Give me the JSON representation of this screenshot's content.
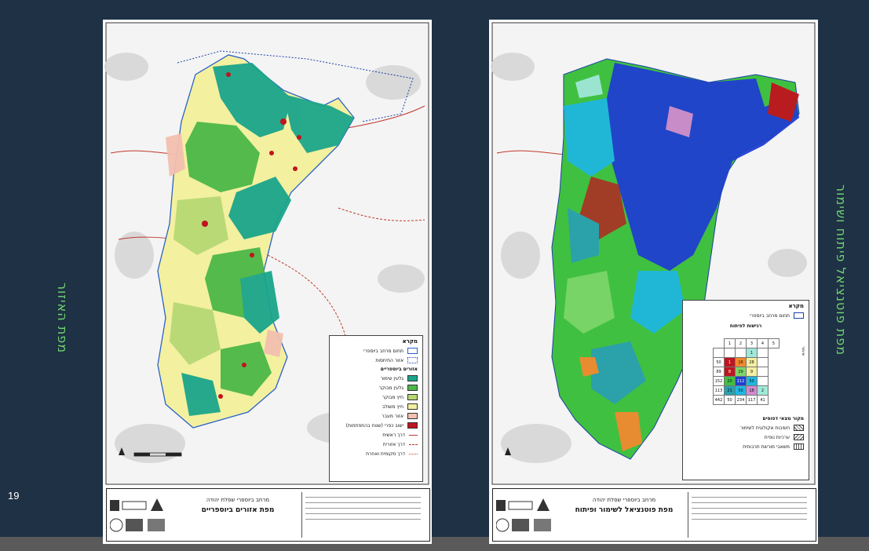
{
  "slide": {
    "number": "19",
    "left_title": "מפת האיזור",
    "right_title": "מפת פוטנציאל פיתוח ושימור"
  },
  "left_map": {
    "legend": {
      "title": "מקרא",
      "items": [
        {
          "label": "תחום מרחב ביוספרי",
          "color": "#ffffff",
          "kind": "outline"
        },
        {
          "label": "אזור התיחסות",
          "color": "#ffffff",
          "kind": "dotted"
        },
        {
          "label": "אזורים ביוספריים",
          "kind": "header"
        },
        {
          "label": "גלעין שימור",
          "color": "#1aa58a"
        },
        {
          "label": "גלעין מבוקר",
          "color": "#4cb848"
        },
        {
          "label": "חיץ מבוקר",
          "color": "#b6d874"
        },
        {
          "label": "חיץ משולב",
          "color": "#f3f0a0"
        },
        {
          "label": "אזור מעבר",
          "color": "#f3c0b0"
        },
        {
          "label": "ישוב כפרי (שטח בהתפתחות)",
          "color": "#c0141e"
        },
        {
          "label": "דרך ראשית",
          "kind": "line"
        },
        {
          "label": "דרך אזורית",
          "kind": "line"
        },
        {
          "label": "דרך מקומית ואחרת",
          "kind": "line"
        }
      ]
    },
    "title_block": {
      "subtitle": "מרחב ביוספרי שפלת יהודה",
      "title": "מפת אזורים ביוספריים"
    }
  },
  "right_map": {
    "legend": {
      "title": "מקרא",
      "boundary_label": "תחום מרחב ביוספרי",
      "matrix_title": "רגישות לפיתוח",
      "matrix_row_header": "שימור",
      "matrix_col_headers": [
        "5",
        "4",
        "3",
        "2",
        "1"
      ],
      "matrix_rows": [
        [
          "",
          "",
          "",
          "1",
          ""
        ],
        [
          "50",
          "1",
          "16",
          "28",
          ""
        ],
        [
          "89",
          "8",
          "29",
          "9",
          ""
        ],
        [
          "152",
          "20",
          "112",
          "50",
          ""
        ],
        [
          "113",
          "21",
          "50",
          "18",
          "2"
        ],
        [
          "442",
          "50",
          "234",
          "117",
          "41"
        ]
      ],
      "patterns_title": "מקור מצאי דפוסים",
      "patterns": [
        "חשיבות אקולוגית לשימור",
        "ערכיות נופית",
        "משאבי מורשת תרבותית"
      ]
    },
    "title_block": {
      "subtitle": "מרחב ביוספרי שפלת יהודה",
      "title": "מפת פוטנציאל לשימור ופיתוח"
    }
  },
  "colors": {
    "background": "#1f3145",
    "side_title": "#6fd36f",
    "core_conservation": "#1aa58a",
    "core_controlled": "#4cb848",
    "buffer": "#b6d874",
    "buffer_mixed": "#f3f0a0",
    "transition": "#f3c0b0",
    "settlement": "#c0141e",
    "potential_blue": "#1f3fd0",
    "potential_cyan": "#1fb7e0",
    "potential_green": "#40c040"
  }
}
